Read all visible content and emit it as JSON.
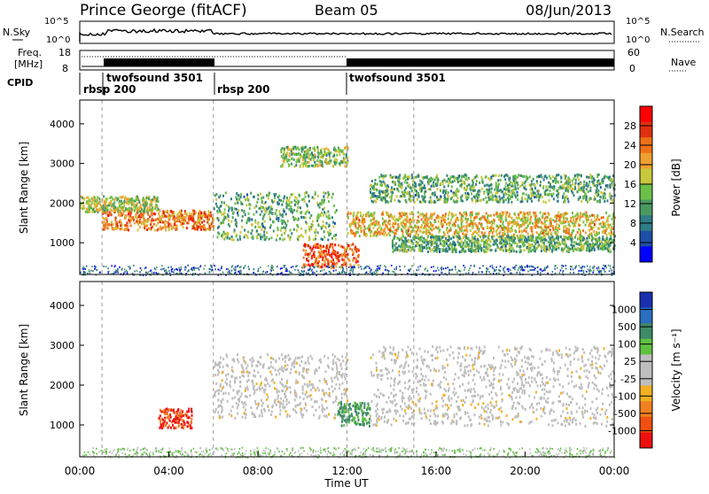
{
  "header": {
    "station": "Prince George (fitACF)",
    "beam": "Beam 05",
    "date": "08/Jun/2013"
  },
  "top_panels": {
    "nsky_label": "N.Sky",
    "nsky_ticks": [
      "10^5",
      "10^0"
    ],
    "nsearch_label": "N.Search",
    "nsearch_ticks": [
      "10^5",
      "10^0"
    ],
    "freq_label_line1": "Freq.",
    "freq_label_line2": "[MHz]",
    "freq_ticks": [
      "18",
      "8"
    ],
    "nave_label": "Nave",
    "nave_ticks": [
      "60",
      "0"
    ],
    "cpid_label": "CPID",
    "cpid_segments": [
      {
        "label": "rbsp 200",
        "start": "00:00",
        "end": "01:00"
      },
      {
        "label": "twofsound 3501",
        "start": "01:00",
        "end": "06:00"
      },
      {
        "label": "rbsp 200",
        "start": "06:00",
        "end": "12:00"
      },
      {
        "label": "twofsound 3501",
        "start": "12:00",
        "end": "24:00"
      }
    ]
  },
  "colors": {
    "power": [
      "#0000ff",
      "#1e4fa6",
      "#2f7d86",
      "#4a9a60",
      "#6cc04a",
      "#c8c83c",
      "#f0a030",
      "#f07018",
      "#e03010",
      "#ff0000"
    ],
    "velocity": [
      "#1a2fb0",
      "#2a6fbf",
      "#3f8a68",
      "#5fc040",
      "#bebebe",
      "#bebebe",
      "#f0b020",
      "#f08020",
      "#f05010",
      "#ee1010"
    ]
  },
  "chart_data": [
    {
      "type": "heatmap",
      "panel": "power",
      "ylabel": "Slant Range [km]",
      "yticks": [
        "1000",
        "2000",
        "3000",
        "4000"
      ],
      "ylim": [
        200,
        4600
      ],
      "colorbar_label": "Power [dB]",
      "colorbar_ticks": [
        "4",
        "8",
        "12",
        "16",
        "20",
        "24",
        "28"
      ],
      "colorbar_range": [
        0,
        32
      ],
      "x_range_hours": [
        0,
        24
      ],
      "bands": [
        {
          "t": [
            1.0,
            6.0
          ],
          "r_center": 1600,
          "r_width": 250,
          "level": 24
        },
        {
          "t": [
            0.0,
            3.5
          ],
          "r_center": 2000,
          "r_width": 200,
          "level": 16
        },
        {
          "t": [
            6.0,
            11.5
          ],
          "r_center": 1700,
          "r_width": 600,
          "level": 12
        },
        {
          "t": [
            9.0,
            12.0
          ],
          "r_center": 3200,
          "r_width": 250,
          "level": 14
        },
        {
          "t": [
            10.0,
            12.5
          ],
          "r_center": 700,
          "r_width": 300,
          "level": 26
        },
        {
          "t": [
            12.0,
            24.0
          ],
          "r_center": 1500,
          "r_width": 300,
          "level": 20
        },
        {
          "t": [
            13.0,
            24.0
          ],
          "r_center": 2400,
          "r_width": 350,
          "level": 12
        },
        {
          "t": [
            14.0,
            24.0
          ],
          "r_center": 1000,
          "r_width": 200,
          "level": 12
        }
      ]
    },
    {
      "type": "heatmap",
      "panel": "velocity",
      "ylabel": "Slant Range [km]",
      "yticks": [
        "1000",
        "2000",
        "3000",
        "4000"
      ],
      "ylim": [
        200,
        4600
      ],
      "xlabel": "Time UT",
      "xticks": [
        "00:00",
        "04:00",
        "08:00",
        "12:00",
        "16:00",
        "20:00",
        "00:00"
      ],
      "colorbar_label": "Velocity [m s⁻¹]",
      "colorbar_ticks": [
        "1000",
        "500",
        "100",
        "25",
        "-25",
        "-100",
        "-500",
        "-1000"
      ],
      "bands": [
        {
          "t": [
            3.5,
            5.0
          ],
          "r_center": 1200,
          "r_width": 250,
          "level": -800
        },
        {
          "t": [
            6.0,
            12.0
          ],
          "r_center": 2000,
          "r_width": 800,
          "level": 0
        },
        {
          "t": [
            11.5,
            13.0
          ],
          "r_center": 1300,
          "r_width": 300,
          "level": 80
        },
        {
          "t": [
            13.0,
            24.0
          ],
          "r_center": 2000,
          "r_width": 1000,
          "level": 0
        }
      ]
    }
  ]
}
